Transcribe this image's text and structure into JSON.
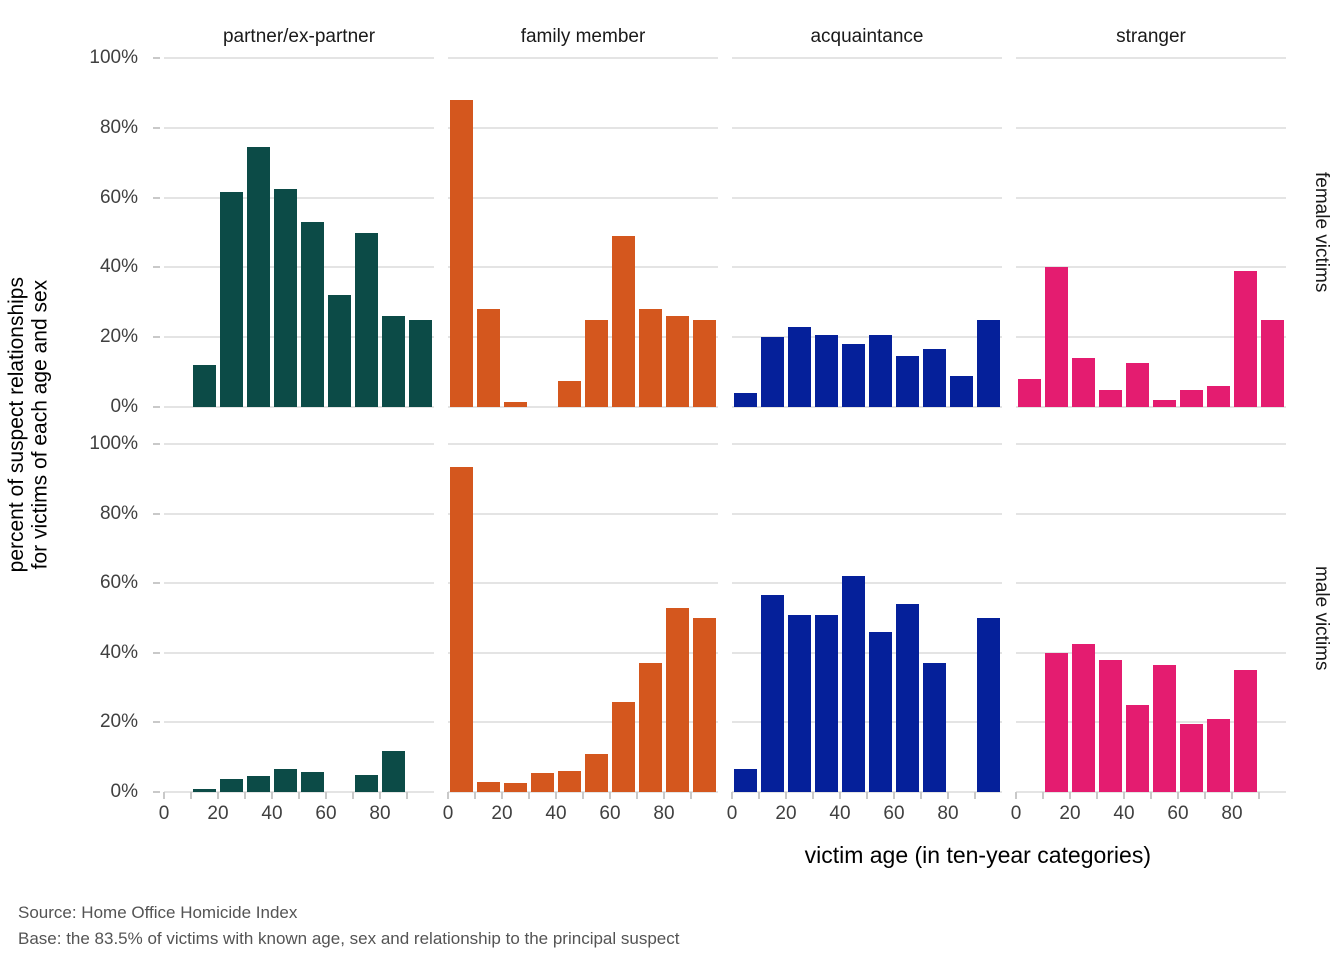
{
  "figure": {
    "y_axis_title_line1": "percent of suspect relationships",
    "y_axis_title_line2": "for victims of each age and sex",
    "x_axis_title": "victim age (in ten-year categories)",
    "source_line": "Source: Home Office Homicide Index",
    "base_line": "Base: the 83.5% of victims with known age, sex and relationship to the principal suspect"
  },
  "facets": {
    "columns": [
      "partner/ex-partner",
      "family member",
      "acquaintance",
      "stranger"
    ],
    "rows": [
      "female victims",
      "male victims"
    ]
  },
  "colors": {
    "partner": "#0C4B47",
    "family": "#D4571E",
    "acquaintance": "#05209A",
    "stranger": "#E41C70",
    "gridline": "#E4E4E4",
    "tick_mark": "#C9C9C9",
    "tick_label": "#404040",
    "caption": "#545454"
  },
  "chart_data": {
    "type": "bar",
    "title": "",
    "xlabel": "victim age (in ten-year categories)",
    "ylabel": "percent of suspect relationships for victims of each age and sex",
    "facet_columns": [
      "partner/ex-partner",
      "family member",
      "acquaintance",
      "stranger"
    ],
    "facet_rows": [
      "female victims",
      "male victims"
    ],
    "x_bins": [
      "0-9",
      "10-19",
      "20-29",
      "30-39",
      "40-49",
      "50-59",
      "60-69",
      "70-79",
      "80-89",
      "90+"
    ],
    "x_tick_values": [
      0,
      10,
      20,
      30,
      40,
      50,
      60,
      70,
      80,
      90
    ],
    "x_tick_labels_shown": [
      "0",
      "20",
      "40",
      "60",
      "80"
    ],
    "y_tick_labels": [
      "100%",
      "80%",
      "60%",
      "40%",
      "20%",
      "0%"
    ],
    "ylim": [
      0,
      100
    ],
    "grid": true,
    "series": [
      {
        "row": 0,
        "col": 0,
        "row_label": "female victims",
        "col_label": "partner/ex-partner",
        "color": "#0C4B47",
        "values": [
          0,
          12,
          61.5,
          74.5,
          62.5,
          53,
          32,
          50,
          26,
          25
        ]
      },
      {
        "row": 0,
        "col": 1,
        "row_label": "female victims",
        "col_label": "family member",
        "color": "#D4571E",
        "values": [
          88,
          28,
          1.5,
          0,
          7.5,
          25,
          49,
          28,
          26,
          25
        ]
      },
      {
        "row": 0,
        "col": 2,
        "row_label": "female victims",
        "col_label": "acquaintance",
        "color": "#05209A",
        "values": [
          4,
          20,
          23,
          20.5,
          18,
          20.5,
          14.5,
          16.5,
          9,
          25
        ]
      },
      {
        "row": 0,
        "col": 3,
        "row_label": "female victims",
        "col_label": "stranger",
        "color": "#E41C70",
        "values": [
          8,
          40,
          14,
          5,
          12.5,
          2,
          5,
          6,
          39,
          25
        ]
      },
      {
        "row": 1,
        "col": 0,
        "row_label": "male victims",
        "col_label": "partner/ex-partner",
        "color": "#0C4B47",
        "values": [
          0,
          1,
          3.7,
          4.7,
          6.5,
          5.7,
          0,
          5,
          11.8,
          0
        ]
      },
      {
        "row": 1,
        "col": 1,
        "row_label": "male victims",
        "col_label": "family member",
        "color": "#D4571E",
        "values": [
          93.5,
          3,
          2.5,
          5.5,
          6,
          11,
          26,
          37,
          53,
          50
        ]
      },
      {
        "row": 1,
        "col": 2,
        "row_label": "male victims",
        "col_label": "acquaintance",
        "color": "#05209A",
        "values": [
          6.5,
          56.5,
          51,
          51,
          62,
          46,
          54,
          37,
          0,
          50
        ]
      },
      {
        "row": 1,
        "col": 3,
        "row_label": "male victims",
        "col_label": "stranger",
        "color": "#E41C70",
        "values": [
          0,
          40,
          42.5,
          38,
          25,
          36.5,
          19.5,
          21,
          35,
          0
        ]
      }
    ]
  }
}
